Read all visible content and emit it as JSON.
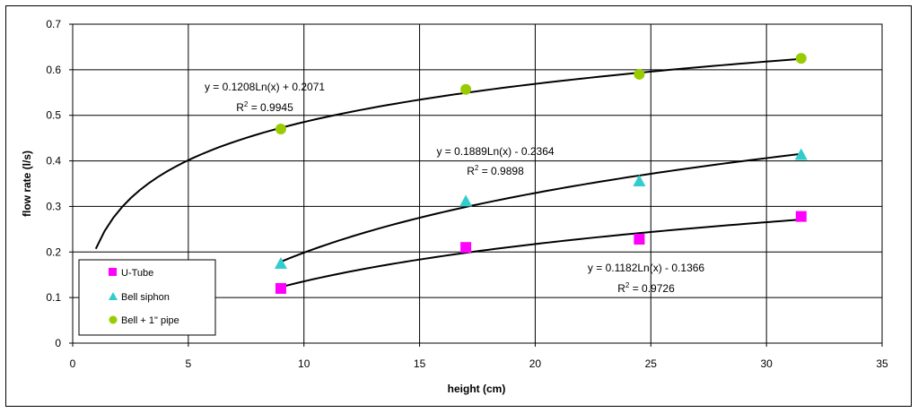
{
  "chart_data": {
    "type": "scatter",
    "xlabel": "height (cm)",
    "ylabel": "flow rate (l/s)",
    "xlim": [
      0,
      35
    ],
    "ylim": [
      0,
      0.7
    ],
    "x_ticks": [
      "0",
      "5",
      "10",
      "15",
      "20",
      "25",
      "30",
      "35"
    ],
    "y_ticks": [
      "0",
      "0.1",
      "0.2",
      "0.3",
      "0.4",
      "0.5",
      "0.6",
      "0.7"
    ],
    "grid": true,
    "legend_position": "bottom-left",
    "series": [
      {
        "name": "U-Tube",
        "marker": "square",
        "color": "#ff00ff",
        "x": [
          9,
          17,
          24.5,
          31.5
        ],
        "y": [
          0.12,
          0.21,
          0.228,
          0.278
        ],
        "trendline": {
          "type": "log",
          "a": 0.1182,
          "b": -0.1366,
          "x_range": [
            9,
            31.5
          ],
          "equation": "y = 0.1182Ln(x) - 0.1366",
          "r2_label": "R",
          "r2_sup": "2",
          "r2_value": " = 0.9726"
        }
      },
      {
        "name": "Bell siphon",
        "marker": "triangle",
        "color": "#33cccc",
        "x": [
          9,
          17,
          24.5,
          31.5
        ],
        "y": [
          0.175,
          0.312,
          0.356,
          0.414
        ],
        "trendline": {
          "type": "log",
          "a": 0.1889,
          "b": -0.2364,
          "x_range": [
            9,
            31.5
          ],
          "equation": "y = 0.1889Ln(x) - 0.2364",
          "r2_label": "R",
          "r2_sup": "2",
          "r2_value": " = 0.9898"
        }
      },
      {
        "name": "Bell + 1\" pipe",
        "marker": "circle",
        "color": "#99cc00",
        "x": [
          9,
          17,
          24.5,
          31.5
        ],
        "y": [
          0.47,
          0.557,
          0.59,
          0.625
        ],
        "trendline": {
          "type": "log",
          "a": 0.1208,
          "b": 0.2071,
          "x_range": [
            1,
            31.5
          ],
          "equation": "y = 0.1208Ln(x) + 0.2071",
          "r2_label": "R",
          "r2_sup": "2",
          "r2_value": " = 0.9945"
        }
      }
    ]
  }
}
